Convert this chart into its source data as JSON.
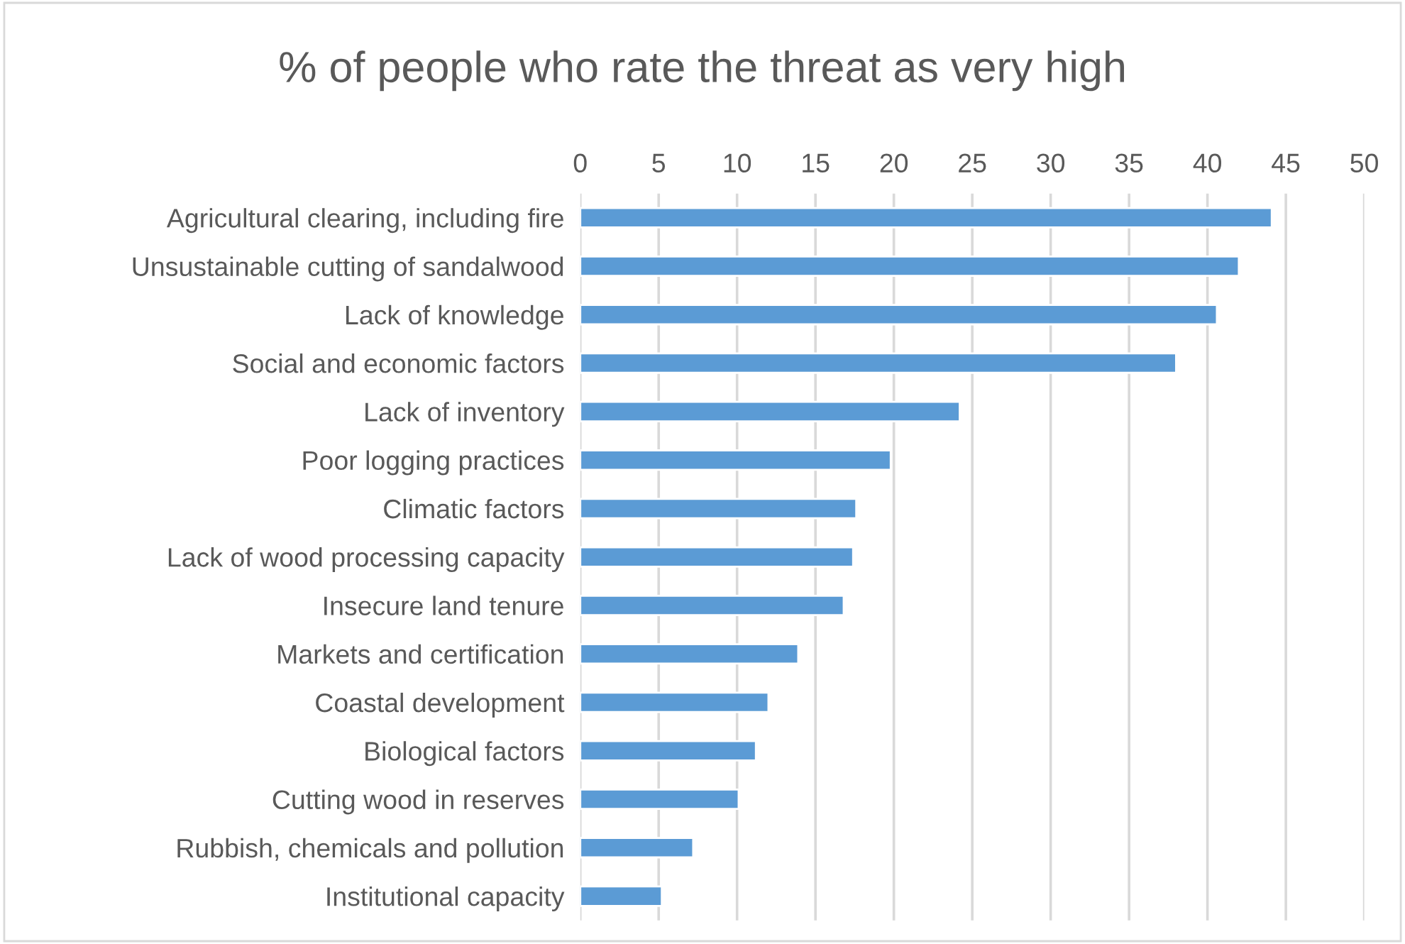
{
  "chart_data": {
    "type": "bar",
    "orientation": "horizontal",
    "title": "% of people who rate the threat as very high",
    "categories": [
      "Agricultural clearing, including fire",
      "Unsustainable cutting of sandalwood",
      "Lack of knowledge",
      "Social and economic factors",
      "Lack of inventory",
      "Poor logging practices",
      "Climatic factors",
      "Lack of wood processing capacity",
      "Insecure land tenure",
      "Markets and certification",
      "Coastal development",
      "Biological factors",
      "Cutting wood in reserves",
      "Rubbish, chemicals and pollution",
      "Institutional capacity"
    ],
    "values": [
      44.1,
      42.0,
      40.6,
      38.0,
      24.2,
      19.8,
      17.6,
      17.4,
      16.8,
      13.9,
      12.0,
      11.2,
      10.1,
      7.2,
      5.2
    ],
    "color": "#5b9bd5",
    "xlim": [
      0,
      50
    ],
    "xticks": [
      0,
      5,
      10,
      15,
      20,
      25,
      30,
      35,
      40,
      45,
      50
    ],
    "grid": "x",
    "legend": false
  }
}
